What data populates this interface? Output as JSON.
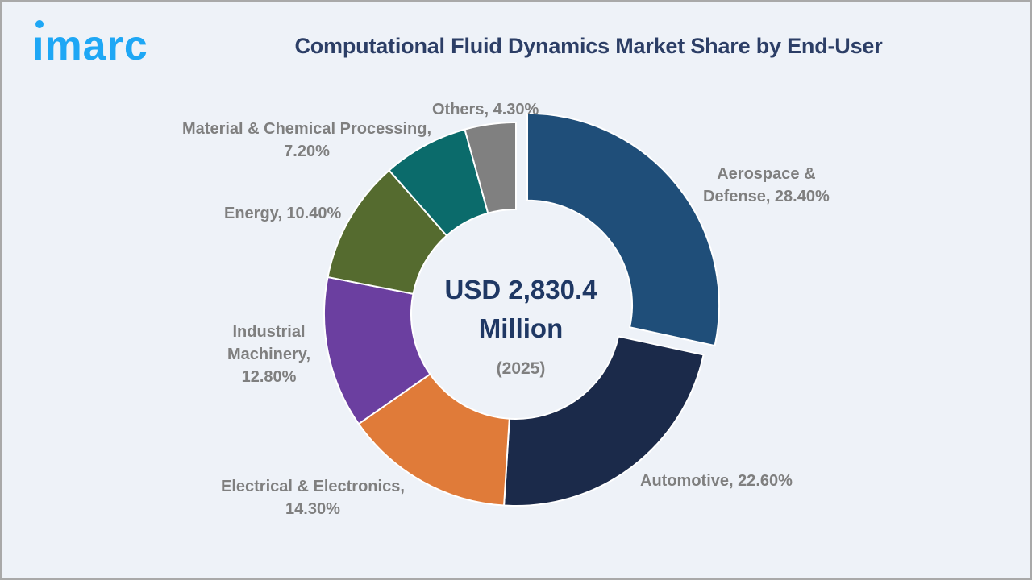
{
  "brand": {
    "logo_text": "imarc",
    "logo_color": "#1ea7f5"
  },
  "header": {
    "title": "Computational Fluid Dynamics Market Share by End-User"
  },
  "center": {
    "value_line1": "USD 2,830.4",
    "value_line2": "Million",
    "year": "(2025)"
  },
  "labels": {
    "aerospace": {
      "line1": "Aerospace &",
      "line2": "Defense, 28.40%"
    },
    "automotive": {
      "line1": "Automotive, 22.60%"
    },
    "electrical": {
      "line1": "Electrical & Electronics,",
      "line2": "14.30%"
    },
    "industrial": {
      "line1": "Industrial",
      "line2": "Machinery,",
      "line3": "12.80%"
    },
    "energy": {
      "line1": "Energy, 10.40%"
    },
    "material": {
      "line1": "Material & Chemical Processing,",
      "line2": "7.20%"
    },
    "others": {
      "line1": "Others, 4.30%"
    }
  },
  "chart_data": {
    "type": "pie",
    "subtype": "donut",
    "title": "Computational Fluid Dynamics Market Share by End-User",
    "center_text": "USD 2,830.4 Million (2025)",
    "categories": [
      "Aerospace & Defense",
      "Automotive",
      "Electrical & Electronics",
      "Industrial Machinery",
      "Energy",
      "Material & Chemical Processing",
      "Others"
    ],
    "values": [
      28.4,
      22.6,
      14.3,
      12.8,
      10.4,
      7.2,
      4.3
    ],
    "unit": "%",
    "colors": [
      "#1f4e79",
      "#1b2a4a",
      "#e07b39",
      "#6b3fa0",
      "#556b2f",
      "#0b6b6b",
      "#808080"
    ],
    "exploded": [
      "Aerospace & Defense"
    ],
    "legend": "none (data labels)"
  }
}
